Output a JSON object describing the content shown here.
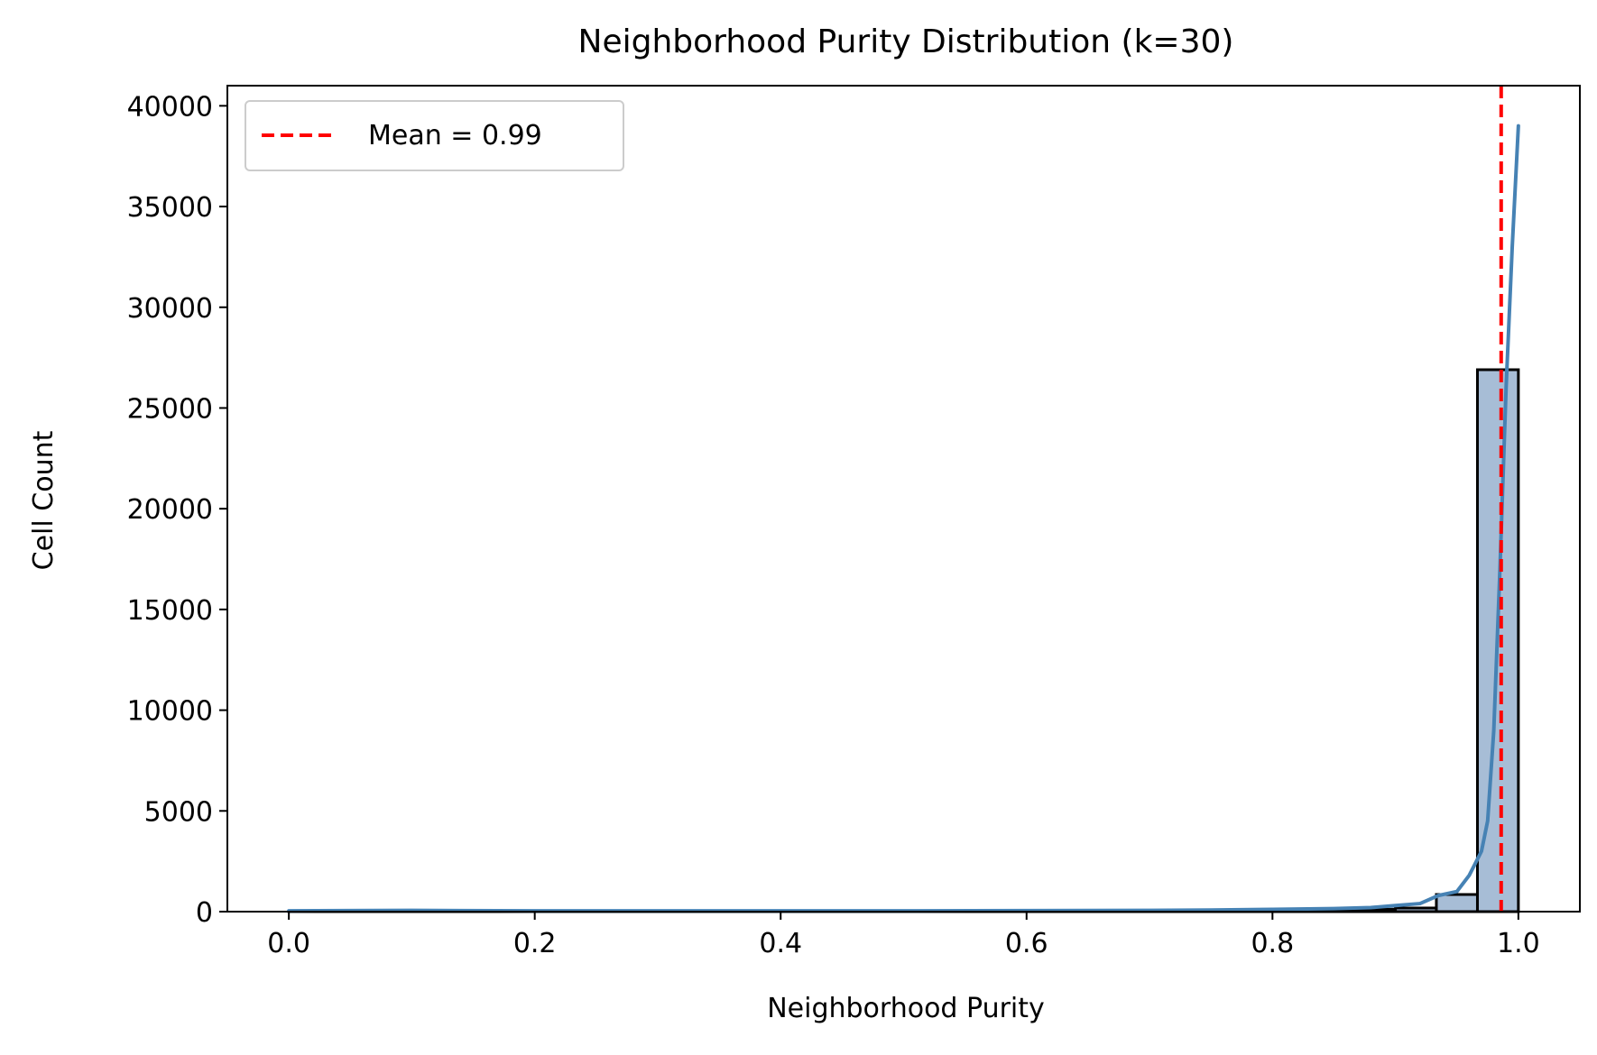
{
  "chart_data": {
    "type": "bar",
    "title": "Neighborhood Purity Distribution (k=30)",
    "xlabel": "Neighborhood Purity",
    "ylabel": "Cell Count",
    "xlim": [
      -0.05,
      1.05
    ],
    "ylim": [
      0,
      41000
    ],
    "xticks": [
      0.0,
      0.2,
      0.4,
      0.6,
      0.8,
      1.0
    ],
    "xtick_labels": [
      "0.0",
      "0.2",
      "0.4",
      "0.6",
      "0.8",
      "1.0"
    ],
    "yticks": [
      0,
      5000,
      10000,
      15000,
      20000,
      25000,
      30000,
      35000,
      40000
    ],
    "ytick_labels": [
      "0",
      "5000",
      "10000",
      "15000",
      "20000",
      "25000",
      "30000",
      "35000",
      "40000"
    ],
    "grid": false,
    "legend_position": "top-left",
    "histogram": {
      "bin_edges": [
        0.0,
        0.0333,
        0.0667,
        0.1,
        0.1333,
        0.1667,
        0.2,
        0.2333,
        0.2667,
        0.3,
        0.3333,
        0.3667,
        0.4,
        0.4333,
        0.4667,
        0.5,
        0.5333,
        0.5667,
        0.6,
        0.6333,
        0.6667,
        0.7,
        0.7333,
        0.7667,
        0.8,
        0.8333,
        0.8667,
        0.9,
        0.9333,
        0.9667,
        1.0
      ],
      "counts": [
        5,
        5,
        5,
        5,
        5,
        5,
        5,
        5,
        5,
        5,
        5,
        5,
        5,
        5,
        5,
        5,
        5,
        5,
        10,
        10,
        15,
        20,
        30,
        40,
        60,
        80,
        120,
        180,
        850,
        26900
      ],
      "fill_color": "#a7bdd6",
      "edge_color": "#000000"
    },
    "kde": {
      "name": "KDE",
      "color": "#4682b4",
      "x": [
        0.0,
        0.1,
        0.2,
        0.3,
        0.4,
        0.5,
        0.6,
        0.7,
        0.75,
        0.8,
        0.85,
        0.88,
        0.9,
        0.92,
        0.935,
        0.95,
        0.96,
        0.97,
        0.975,
        0.98,
        0.985,
        0.99,
        0.995,
        1.0
      ],
      "y": [
        40,
        60,
        40,
        40,
        40,
        40,
        50,
        60,
        80,
        110,
        150,
        200,
        300,
        400,
        800,
        1000,
        1800,
        3000,
        4500,
        9000,
        17000,
        26000,
        33000,
        39000
      ]
    },
    "mean_line": {
      "x": 0.986,
      "color": "#ff0000",
      "style": "dashed",
      "label": "Mean = 0.99"
    }
  }
}
